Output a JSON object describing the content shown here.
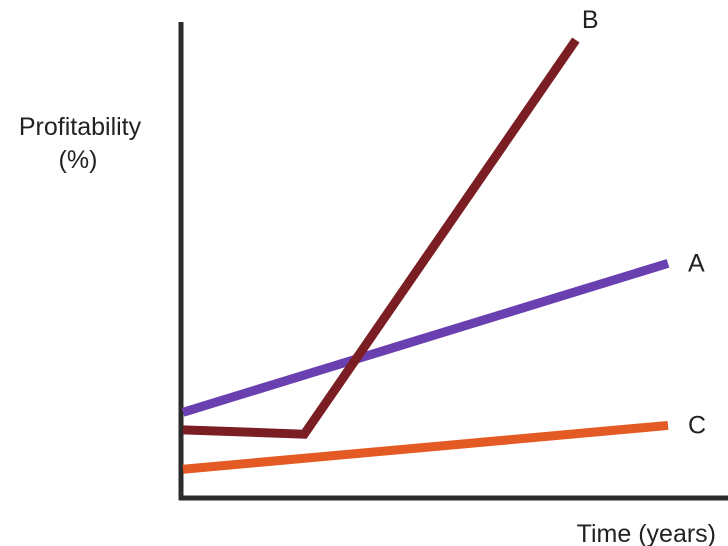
{
  "chart_data": {
    "type": "line",
    "title": "",
    "ylabel_line1": "Profitability",
    "ylabel_line2": "(%)",
    "xlabel": "Time (years)",
    "xlim": [
      0,
      100
    ],
    "ylim": [
      0,
      100
    ],
    "grid": false,
    "legend": "none",
    "series": [
      {
        "name": "A",
        "color": "#6a3fb0",
        "x": [
          0,
          100
        ],
        "y": [
          15,
          49
        ]
      },
      {
        "name": "B",
        "color": "#7b1e24",
        "x": [
          0,
          25,
          81
        ],
        "y": [
          11,
          10,
          100
        ]
      },
      {
        "name": "C",
        "color": "#e35a24",
        "x": [
          0,
          100
        ],
        "y": [
          2,
          12
        ]
      }
    ]
  }
}
